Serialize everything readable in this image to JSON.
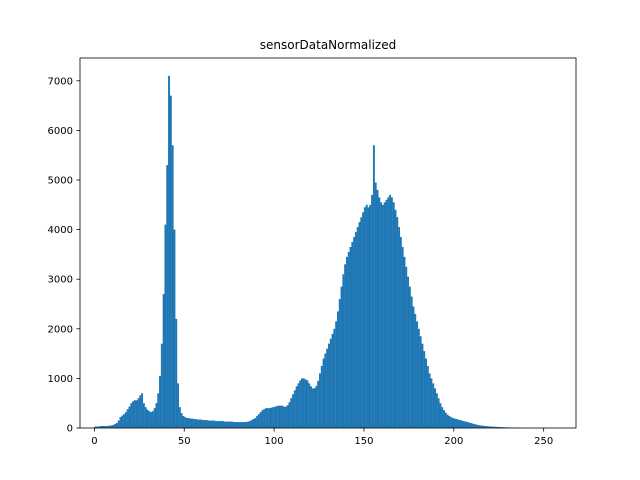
{
  "chart_data": {
    "type": "bar",
    "title": "sensorDataNormalized",
    "xlabel": "",
    "ylabel": "",
    "xlim": [
      -8,
      268
    ],
    "ylim": [
      0,
      7460
    ],
    "xticks": [
      0,
      50,
      100,
      150,
      200,
      250
    ],
    "yticks": [
      0,
      1000,
      2000,
      3000,
      4000,
      5000,
      6000,
      7000
    ],
    "bar_color": "#1f77b4",
    "grid": false,
    "bin_width": 1,
    "bin_start": 0,
    "values": [
      30,
      30,
      30,
      40,
      40,
      40,
      40,
      40,
      50,
      50,
      60,
      80,
      100,
      150,
      220,
      250,
      280,
      320,
      380,
      430,
      500,
      540,
      560,
      560,
      600,
      660,
      700,
      500,
      420,
      370,
      340,
      320,
      340,
      400,
      500,
      700,
      1050,
      1700,
      2700,
      4100,
      5300,
      7100,
      6700,
      5700,
      4000,
      2200,
      900,
      420,
      300,
      240,
      220,
      200,
      200,
      190,
      190,
      180,
      180,
      170,
      170,
      170,
      160,
      160,
      160,
      150,
      150,
      150,
      150,
      140,
      140,
      140,
      140,
      140,
      130,
      130,
      130,
      130,
      130,
      120,
      120,
      120,
      120,
      120,
      120,
      120,
      120,
      130,
      140,
      160,
      180,
      200,
      240,
      280,
      320,
      360,
      380,
      400,
      400,
      400,
      410,
      420,
      430,
      440,
      450,
      450,
      450,
      430,
      430,
      460,
      520,
      600,
      680,
      760,
      840,
      900,
      960,
      1000,
      1000,
      980,
      960,
      900,
      840,
      800,
      800,
      850,
      950,
      1100,
      1250,
      1400,
      1500,
      1600,
      1700,
      1800,
      1900,
      2000,
      2150,
      2350,
      2600,
      2850,
      3100,
      3300,
      3450,
      3550,
      3650,
      3750,
      3850,
      3950,
      4050,
      4150,
      4250,
      4350,
      4450,
      4500,
      4450,
      4500,
      4700,
      5700,
      4950,
      4800,
      4650,
      4550,
      4500,
      4550,
      4600,
      4650,
      4700,
      4650,
      4550,
      4400,
      4250,
      4050,
      3850,
      3650,
      3450,
      3250,
      3050,
      2850,
      2650,
      2450,
      2300,
      2150,
      2000,
      1850,
      1700,
      1550,
      1400,
      1250,
      1100,
      1000,
      900,
      800,
      700,
      600,
      500,
      420,
      360,
      310,
      270,
      240,
      220,
      200,
      190,
      180,
      170,
      160,
      150,
      140,
      130,
      120,
      110,
      100,
      90,
      80,
      70,
      60,
      55,
      50,
      45,
      40,
      36,
      33,
      30,
      28,
      26,
      24,
      22,
      20,
      18,
      16,
      14,
      12,
      10,
      9,
      8,
      7,
      6,
      5,
      4,
      3,
      2,
      2,
      1
    ]
  }
}
